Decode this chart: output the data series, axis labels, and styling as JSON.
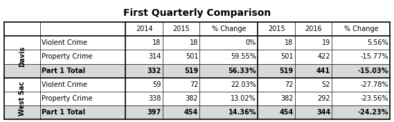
{
  "title": "First Quarterly Comparison",
  "header_cols": [
    "",
    "",
    "2014",
    "2015",
    "% Change",
    "2015",
    "2016",
    "% Change"
  ],
  "sections": [
    {
      "label": "Davis",
      "rows": [
        {
          "name": "Violent Crime",
          "vals": [
            "18",
            "18",
            "0%",
            "18",
            "19",
            "5.56%"
          ],
          "bold": false
        },
        {
          "name": "Property Crime",
          "vals": [
            "314",
            "501",
            "59.55%",
            "501",
            "422",
            "-15.77%"
          ],
          "bold": false
        },
        {
          "name": "Part 1 Total",
          "vals": [
            "332",
            "519",
            "56.33%",
            "519",
            "441",
            "-15.03%"
          ],
          "bold": true
        }
      ]
    },
    {
      "label": "West Sac",
      "rows": [
        {
          "name": "Violent Crime",
          "vals": [
            "59",
            "72",
            "22.03%",
            "72",
            "52",
            "-27.78%"
          ],
          "bold": false
        },
        {
          "name": "Property Crime",
          "vals": [
            "338",
            "382",
            "13.02%",
            "382",
            "292",
            "-23.56%"
          ],
          "bold": false
        },
        {
          "name": "Part 1 Total",
          "vals": [
            "397",
            "454",
            "14.36%",
            "454",
            "344",
            "-24.23%"
          ],
          "bold": true
        }
      ]
    }
  ],
  "bg_normal": "#ffffff",
  "bg_shaded": "#d9d9d9",
  "title_fontsize": 10,
  "cell_fontsize": 7,
  "label_fontsize": 7
}
